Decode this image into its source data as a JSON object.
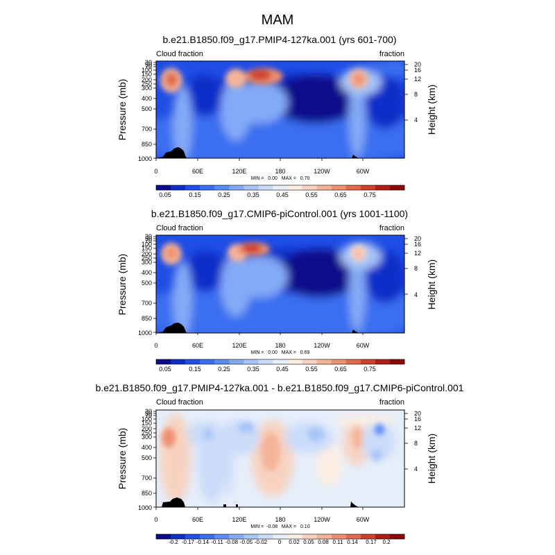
{
  "figure": {
    "title": "MAM"
  },
  "chart_data": [
    {
      "type": "heatmap",
      "title": "b.e21.B1850.f09_g17.PMIP4-127ka.001 (yrs 601-700)",
      "left_label": "Cloud fraction",
      "right_label": "fraction",
      "ylabel": "Pressure (mb)",
      "y2label": "Height (km)",
      "x_ticks": [
        "0",
        "60E",
        "120E",
        "180",
        "120W",
        "60W"
      ],
      "y_ticks": [
        "30",
        "50",
        "70",
        "100",
        "150",
        "200",
        "250",
        "300",
        "400",
        "500",
        "700",
        "850",
        "1000"
      ],
      "y2_ticks": [
        "20",
        "16",
        "12",
        "8",
        "4"
      ],
      "min": 0.0,
      "max": 0.7,
      "stats_text": "MIN =   0.00   MAX =   0.70",
      "colorbar_labels": [
        "0.05",
        "0.15",
        "0.25",
        "0.35",
        "0.45",
        "0.55",
        "0.65",
        "0.75"
      ],
      "colorbar_colors": [
        "#0a0a8c",
        "#0f2ec8",
        "#1f4ee6",
        "#3a6ef0",
        "#5a8cf4",
        "#84aaf6",
        "#a8c4f8",
        "#cadcfa",
        "#e6eefa",
        "#fbeee4",
        "#f8d2c0",
        "#f4b49a",
        "#ee9070",
        "#e26a4c",
        "#d0402e",
        "#b01e16",
        "#8a0a08"
      ]
    },
    {
      "type": "heatmap",
      "title": "b.e21.B1850.f09_g17.CMIP6-piControl.001 (yrs 1001-1100)",
      "left_label": "Cloud fraction",
      "right_label": "fraction",
      "ylabel": "Pressure (mb)",
      "y2label": "Height (km)",
      "x_ticks": [
        "0",
        "60E",
        "120E",
        "180",
        "120W",
        "60W"
      ],
      "y_ticks": [
        "30",
        "50",
        "70",
        "100",
        "150",
        "200",
        "250",
        "300",
        "400",
        "500",
        "700",
        "850",
        "1000"
      ],
      "y2_ticks": [
        "20",
        "16",
        "12",
        "8",
        "4"
      ],
      "min": 0.0,
      "max": 0.69,
      "stats_text": "MIN =   0.00   MAX =   0.69",
      "colorbar_labels": [
        "0.05",
        "0.15",
        "0.25",
        "0.35",
        "0.45",
        "0.55",
        "0.65",
        "0.75"
      ],
      "colorbar_colors": [
        "#0a0a8c",
        "#0f2ec8",
        "#1f4ee6",
        "#3a6ef0",
        "#5a8cf4",
        "#84aaf6",
        "#a8c4f8",
        "#cadcfa",
        "#e6eefa",
        "#fbeee4",
        "#f8d2c0",
        "#f4b49a",
        "#ee9070",
        "#e26a4c",
        "#d0402e",
        "#b01e16",
        "#8a0a08"
      ]
    },
    {
      "type": "heatmap",
      "title": "b.e21.B1850.f09_g17.PMIP4-127ka.001 - b.e21.B1850.f09_g17.CMIP6-piControl.001",
      "left_label": "Cloud fraction",
      "right_label": "fraction",
      "ylabel": "Pressure (mb)",
      "y2label": "Height (km)",
      "x_ticks": [
        "0",
        "60E",
        "120E",
        "180",
        "120W",
        "60W"
      ],
      "y_ticks": [
        "30",
        "50",
        "70",
        "100",
        "150",
        "200",
        "250",
        "300",
        "400",
        "500",
        "700",
        "850",
        "1000"
      ],
      "y2_ticks": [
        "20",
        "16",
        "12",
        "8",
        "4"
      ],
      "min": -0.08,
      "max": 0.1,
      "stats_text": "MIN =  -0.08   MAX =   0.10",
      "colorbar_labels": [
        "-0.2",
        "-0.17",
        "-0.14",
        "-0.11",
        "-0.08",
        "-0.05",
        "-0.02",
        "0",
        "0.02",
        "0.05",
        "0.08",
        "0.11",
        "0.14",
        "0.17",
        "0.2"
      ],
      "colorbar_colors": [
        "#0a0a8c",
        "#0f2ec8",
        "#1f4ee6",
        "#3a6ef0",
        "#5a8cf4",
        "#84aaf6",
        "#a8c4f8",
        "#cadcfa",
        "#e6eefa",
        "#fbeee4",
        "#f8d2c0",
        "#f4b49a",
        "#ee9070",
        "#e26a4c",
        "#d0402e",
        "#b01e16",
        "#8a0a08"
      ]
    }
  ]
}
